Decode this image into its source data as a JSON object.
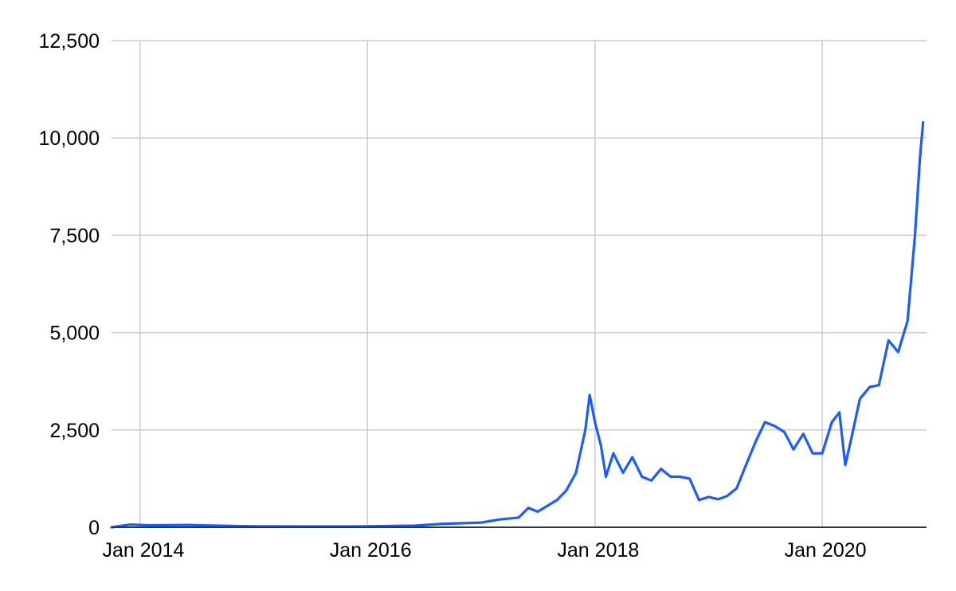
{
  "chart_data": {
    "type": "line",
    "title": "",
    "xlabel": "",
    "ylabel": "",
    "grid": true,
    "legend": "none",
    "ylim": [
      0,
      12500
    ],
    "xlim": [
      "2013-10-01",
      "2020-12-01"
    ],
    "y_ticks": [
      {
        "value": 0,
        "label": "0"
      },
      {
        "value": 2500,
        "label": "2,500"
      },
      {
        "value": 5000,
        "label": "5,000"
      },
      {
        "value": 7500,
        "label": "7,500"
      },
      {
        "value": 10000,
        "label": "10,000"
      },
      {
        "value": 12500,
        "label": "12,500"
      }
    ],
    "x_ticks": [
      {
        "date": "2014-01-01",
        "label": "Jan 2014"
      },
      {
        "date": "2016-01-01",
        "label": "Jan 2016"
      },
      {
        "date": "2018-01-01",
        "label": "Jan 2018"
      },
      {
        "date": "2020-01-01",
        "label": "Jan 2020"
      }
    ],
    "series": [
      {
        "color": "#1a5cff",
        "points": [
          [
            "2013-10-01",
            0
          ],
          [
            "2013-12-01",
            70
          ],
          [
            "2014-02-01",
            50
          ],
          [
            "2014-06-01",
            60
          ],
          [
            "2014-09-01",
            40
          ],
          [
            "2015-01-01",
            25
          ],
          [
            "2015-06-01",
            20
          ],
          [
            "2015-12-01",
            20
          ],
          [
            "2016-06-01",
            40
          ],
          [
            "2016-09-01",
            90
          ],
          [
            "2017-01-01",
            120
          ],
          [
            "2017-03-01",
            200
          ],
          [
            "2017-05-01",
            250
          ],
          [
            "2017-06-01",
            500
          ],
          [
            "2017-07-01",
            400
          ],
          [
            "2017-08-01",
            550
          ],
          [
            "2017-09-01",
            700
          ],
          [
            "2017-10-01",
            950
          ],
          [
            "2017-11-01",
            1400
          ],
          [
            "2017-12-01",
            2500
          ],
          [
            "2017-12-15",
            3400
          ],
          [
            "2018-01-01",
            2700
          ],
          [
            "2018-01-20",
            2100
          ],
          [
            "2018-02-05",
            1300
          ],
          [
            "2018-03-01",
            1900
          ],
          [
            "2018-04-01",
            1400
          ],
          [
            "2018-05-01",
            1800
          ],
          [
            "2018-06-01",
            1300
          ],
          [
            "2018-07-01",
            1200
          ],
          [
            "2018-08-01",
            1500
          ],
          [
            "2018-09-01",
            1300
          ],
          [
            "2018-10-01",
            1300
          ],
          [
            "2018-11-01",
            1250
          ],
          [
            "2018-12-01",
            700
          ],
          [
            "2019-01-01",
            780
          ],
          [
            "2019-02-01",
            720
          ],
          [
            "2019-03-01",
            800
          ],
          [
            "2019-04-01",
            1000
          ],
          [
            "2019-05-01",
            1600
          ],
          [
            "2019-06-01",
            2200
          ],
          [
            "2019-07-01",
            2700
          ],
          [
            "2019-08-01",
            2600
          ],
          [
            "2019-09-01",
            2450
          ],
          [
            "2019-10-01",
            2000
          ],
          [
            "2019-11-01",
            2400
          ],
          [
            "2019-12-01",
            1900
          ],
          [
            "2020-01-01",
            1900
          ],
          [
            "2020-02-01",
            2700
          ],
          [
            "2020-02-25",
            2950
          ],
          [
            "2020-03-15",
            1600
          ],
          [
            "2020-04-01",
            2200
          ],
          [
            "2020-05-01",
            3300
          ],
          [
            "2020-06-01",
            3600
          ],
          [
            "2020-07-01",
            3650
          ],
          [
            "2020-08-01",
            4800
          ],
          [
            "2020-09-01",
            4500
          ],
          [
            "2020-10-01",
            5300
          ],
          [
            "2020-10-25",
            7500
          ],
          [
            "2020-11-10",
            9500
          ],
          [
            "2020-11-20",
            10400
          ]
        ]
      }
    ]
  }
}
